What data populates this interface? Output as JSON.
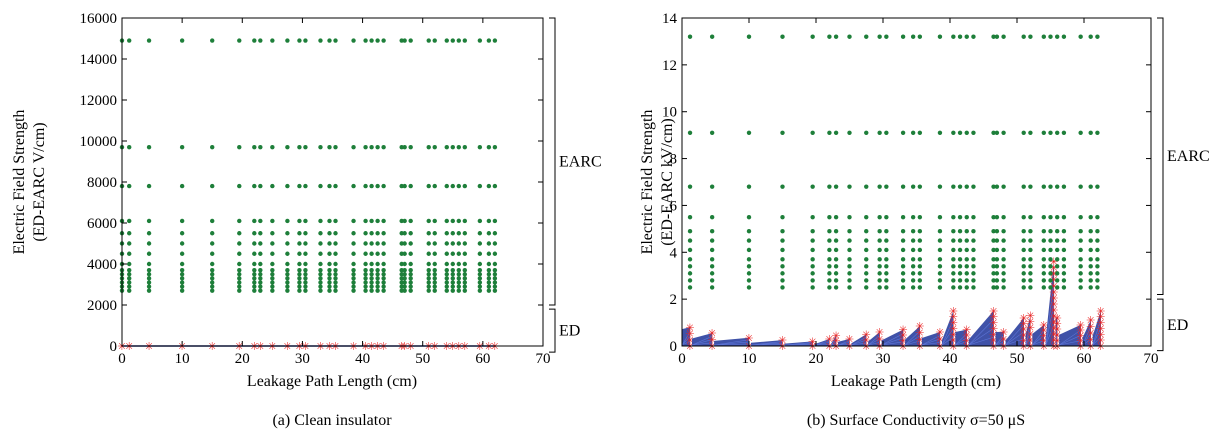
{
  "chart_data": [
    {
      "type": "scatter",
      "caption": "(a)  Clean insulator",
      "xlabel": "Leakage Path Length (cm)",
      "ylabel_line1": "Electric Field Strength",
      "ylabel_line2": "(ED-EARC V/cm)",
      "xlim": [
        0,
        70
      ],
      "ylim": [
        0,
        16000
      ],
      "xticks": [
        "0",
        "10",
        "20",
        "30",
        "40",
        "50",
        "60",
        "70"
      ],
      "yticks": [
        "0",
        "2000",
        "4000",
        "6000",
        "8000",
        "10000",
        "12000",
        "14000",
        "16000"
      ],
      "x_positions": [
        0,
        1.2,
        4.5,
        10,
        15,
        19.5,
        22,
        23,
        25,
        27.5,
        29.5,
        30.5,
        33,
        34.5,
        35.5,
        38.5,
        40.5,
        41.5,
        42.5,
        43.5,
        46.5,
        47,
        48,
        51,
        52,
        54,
        55,
        56,
        57,
        59.5,
        61,
        62
      ],
      "series": [
        {
          "name": "EARC",
          "color": "#1e7f3a",
          "levels": [
            14900,
            9700,
            7800,
            6100,
            5500,
            5000,
            4500,
            4000,
            3700,
            3500,
            3300,
            3100,
            2900,
            2700
          ]
        },
        {
          "name": "ED",
          "color": "#e82020",
          "profile": "flat",
          "y": 0
        }
      ],
      "brackets": [
        {
          "label": "EARC",
          "from": 2000,
          "to": 16000
        },
        {
          "label": "ED",
          "from": -300,
          "to": 1800
        }
      ]
    },
    {
      "type": "scatter",
      "caption": "(b)  Surface Conductivity   σ=50 μS",
      "xlabel": "Leakage Path Length (cm)",
      "ylabel_line1": "Electric Field Strength",
      "ylabel_line2": "(ED-EARC kV/cm)",
      "xlim": [
        0,
        70
      ],
      "ylim": [
        0,
        14
      ],
      "xticks": [
        "0",
        "10",
        "20",
        "30",
        "40",
        "50",
        "60",
        "70"
      ],
      "yticks": [
        "0",
        "2",
        "4",
        "6",
        "8",
        "10",
        "12",
        "14"
      ],
      "x_positions": [
        1.2,
        4.5,
        10,
        15,
        19.5,
        22,
        23,
        25,
        27.5,
        29.5,
        30.5,
        33,
        34.5,
        35.5,
        38.5,
        40.5,
        41.5,
        42.5,
        43.5,
        46.5,
        47,
        48,
        51,
        52,
        54,
        55,
        56,
        57,
        59.5,
        61,
        62
      ],
      "series": [
        {
          "name": "EARC",
          "color": "#1e7f3a",
          "levels": [
            13.2,
            9.1,
            6.8,
            5.5,
            4.9,
            4.5,
            4.1,
            3.7,
            3.4,
            3.1,
            2.8,
            2.5
          ]
        },
        {
          "name": "ED",
          "color": "#e82020",
          "band_color": "#2a3f9e",
          "peaks": [
            [
              1.2,
              0.8
            ],
            [
              4.5,
              0.55
            ],
            [
              10,
              0.35
            ],
            [
              15,
              0.25
            ],
            [
              19.5,
              0.2
            ],
            [
              22,
              0.3
            ],
            [
              23,
              0.45
            ],
            [
              25,
              0.3
            ],
            [
              27.5,
              0.5
            ],
            [
              29.5,
              0.6
            ],
            [
              33,
              0.7
            ],
            [
              35.5,
              0.85
            ],
            [
              38.5,
              0.6
            ],
            [
              40.5,
              1.5
            ],
            [
              42.5,
              0.7
            ],
            [
              46.5,
              1.5
            ],
            [
              48,
              0.6
            ],
            [
              51,
              1.2
            ],
            [
              52,
              1.3
            ],
            [
              54,
              0.9
            ],
            [
              55.5,
              3.6
            ],
            [
              56,
              1.2
            ],
            [
              59.5,
              0.9
            ],
            [
              61,
              1.1
            ],
            [
              62.5,
              1.5
            ]
          ]
        }
      ],
      "brackets": [
        {
          "label": "EARC",
          "from": 2.2,
          "to": 14
        },
        {
          "label": "ED",
          "from": -0.2,
          "to": 2.0
        }
      ]
    }
  ]
}
